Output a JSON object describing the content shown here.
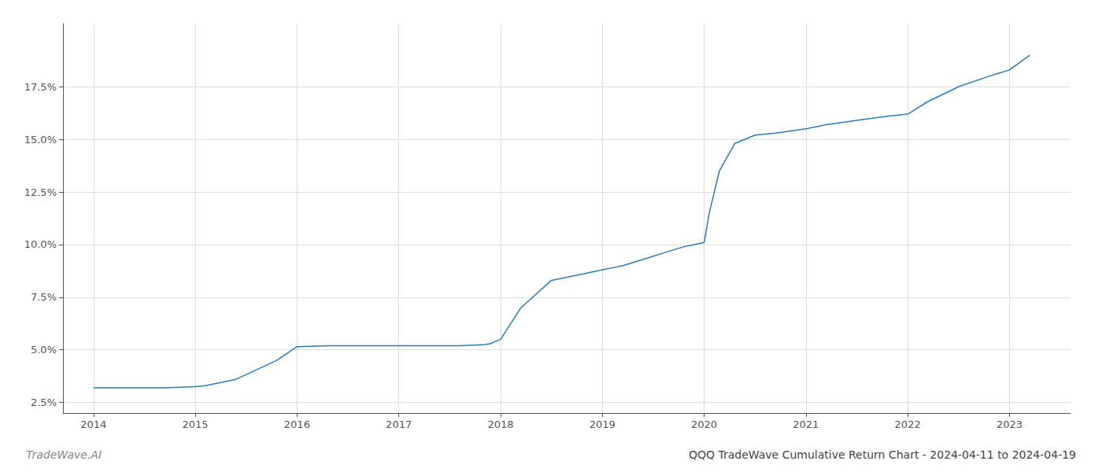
{
  "chart_data": {
    "type": "line",
    "title": "QQQ TradeWave Cumulative Return Chart - 2024-04-11 to 2024-04-19",
    "annotations": [
      "TradeWave.AI"
    ],
    "x": [
      2014.0,
      2014.2,
      2014.7,
      2015.0,
      2015.1,
      2015.4,
      2015.8,
      2016.0,
      2016.3,
      2016.7,
      2017.0,
      2017.05,
      2017.6,
      2017.85,
      2017.9,
      2018.0,
      2018.2,
      2018.5,
      2018.8,
      2019.0,
      2019.1,
      2019.2,
      2019.4,
      2019.6,
      2019.8,
      2019.9,
      2020.0,
      2020.05,
      2020.15,
      2020.3,
      2020.5,
      2020.7,
      2021.0,
      2021.2,
      2021.5,
      2021.8,
      2022.0,
      2022.2,
      2022.5,
      2022.8,
      2023.0,
      2023.2
    ],
    "values": [
      3.2,
      3.2,
      3.2,
      3.25,
      3.3,
      3.6,
      4.5,
      5.15,
      5.2,
      5.2,
      5.2,
      5.2,
      5.2,
      5.25,
      5.3,
      5.5,
      7.0,
      8.3,
      8.6,
      8.8,
      8.9,
      9.0,
      9.3,
      9.6,
      9.9,
      10.0,
      10.1,
      11.5,
      13.5,
      14.8,
      15.2,
      15.3,
      15.5,
      15.7,
      15.9,
      16.1,
      16.2,
      16.8,
      17.5,
      18.0,
      18.3,
      19.0
    ],
    "color": "#2d7bb5",
    "xlim": [
      2013.7,
      2023.6
    ],
    "xticks": [
      2014,
      2015,
      2016,
      2017,
      2018,
      2019,
      2020,
      2021,
      2022,
      2023
    ],
    "ylim": [
      2.0,
      20.5
    ],
    "yticks": [
      {
        "value": 2.5,
        "label": "2.5%"
      },
      {
        "value": 5.0,
        "label": "5.0%"
      },
      {
        "value": 7.5,
        "label": "7.5%"
      },
      {
        "value": 10.0,
        "label": "10.0%"
      },
      {
        "value": 12.5,
        "label": "12.5%"
      },
      {
        "value": 15.0,
        "label": "15.0%"
      },
      {
        "value": 17.5,
        "label": "17.5%"
      }
    ],
    "grid": true
  }
}
